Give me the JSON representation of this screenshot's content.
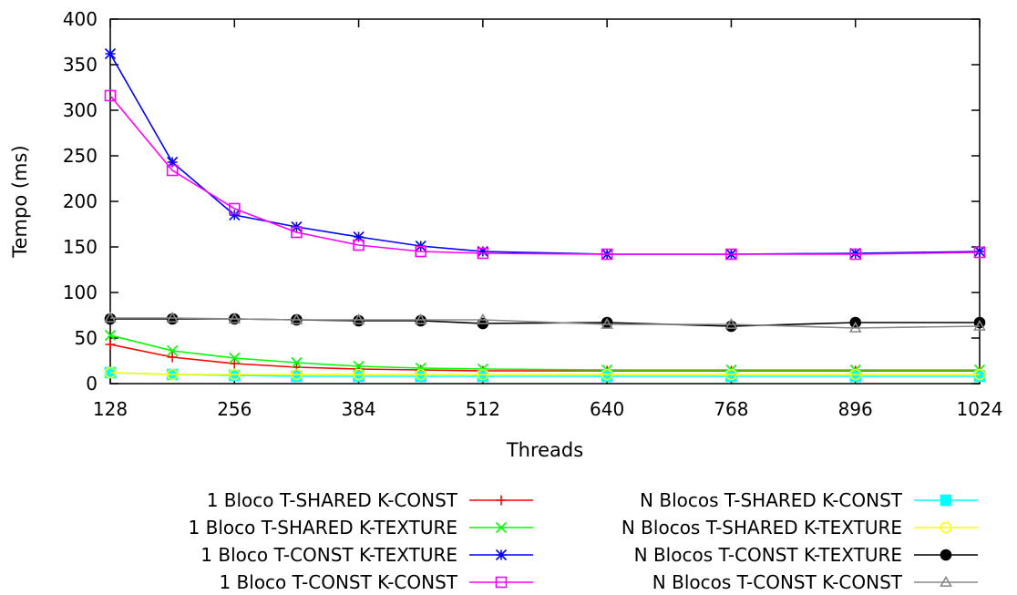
{
  "chart_data": {
    "type": "line",
    "title": "",
    "xlabel": "Threads",
    "ylabel": "Tempo (ms)",
    "xlim": [
      128,
      1024
    ],
    "ylim": [
      0,
      400
    ],
    "xticks": [
      128,
      256,
      384,
      512,
      640,
      768,
      896,
      1024
    ],
    "yticks": [
      0,
      50,
      100,
      150,
      200,
      250,
      300,
      350,
      400
    ],
    "grid": false,
    "legend_position": "bottom",
    "x": [
      128,
      192,
      256,
      320,
      384,
      448,
      512,
      640,
      768,
      896,
      1024
    ],
    "series": [
      {
        "name": "1 Bloco  T-SHARED  K-CONST",
        "color": "#ff0000",
        "marker": "plus",
        "values": [
          43,
          29,
          22,
          18,
          16,
          15,
          14,
          14,
          14,
          14,
          14
        ]
      },
      {
        "name": "1 Bloco  T-SHARED  K-TEXTURE",
        "color": "#00ff00",
        "marker": "cross",
        "values": [
          53,
          36,
          28,
          23,
          19,
          17,
          16,
          15,
          15,
          15,
          15
        ]
      },
      {
        "name": "1 Bloco  T-CONST   K-TEXTURE",
        "color": "#0000ff",
        "marker": "star",
        "values": [
          362,
          243,
          185,
          172,
          161,
          151,
          145,
          142,
          142,
          143,
          145
        ]
      },
      {
        "name": "1 Bloco  T-CONST   K-CONST",
        "color": "#ff00ff",
        "marker": "square-open",
        "values": [
          316,
          234,
          192,
          166,
          152,
          145,
          143,
          142,
          142,
          142,
          144
        ]
      },
      {
        "name": "N Blocos T-SHARED  K-CONST",
        "color": "#00ffff",
        "marker": "square-filled",
        "values": [
          12,
          10,
          9,
          8,
          8,
          8,
          8,
          8,
          8,
          8,
          8
        ]
      },
      {
        "name": "N Blocos T-SHARED  K-TEXTURE",
        "color": "#ffff00",
        "marker": "circle-open",
        "values": [
          12,
          10,
          10,
          10,
          10,
          10,
          10,
          10,
          10,
          10,
          10
        ]
      },
      {
        "name": "N Blocos T-CONST   K-TEXTURE",
        "color": "#000000",
        "marker": "circle-filled",
        "values": [
          71,
          71,
          71,
          70,
          69,
          69,
          66,
          67,
          63,
          67,
          67
        ]
      },
      {
        "name": "N Blocos T-CONST   K-CONST",
        "color": "#888888",
        "marker": "triangle-open",
        "values": [
          72,
          72,
          71,
          70,
          70,
          70,
          70,
          65,
          65,
          61,
          63
        ]
      }
    ]
  }
}
